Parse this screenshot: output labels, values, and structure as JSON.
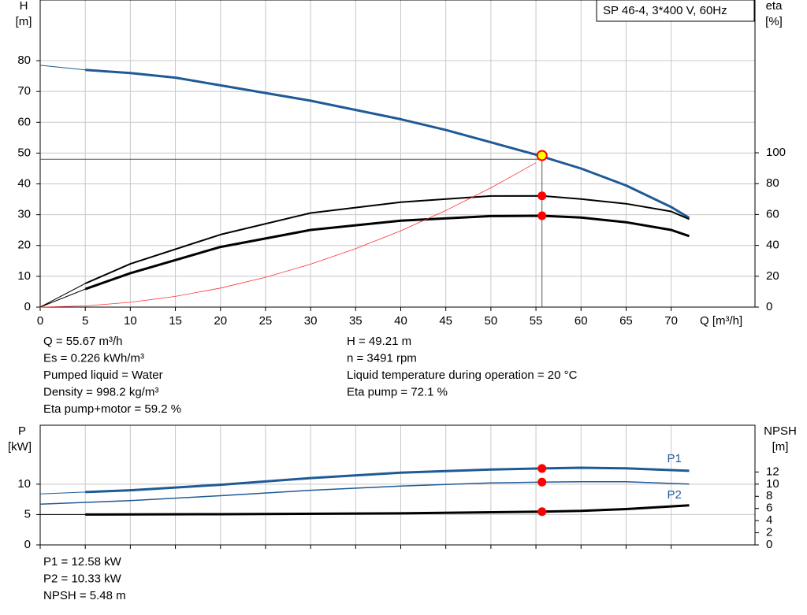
{
  "chart_data": [
    {
      "type": "line",
      "label": "SP 46-4, 3*400 V, 60Hz",
      "ylabel": [
        "H",
        "[m]"
      ],
      "y2label": [
        "eta",
        "[%]"
      ],
      "xlabel": "Q [m³/h]",
      "xlim": [
        0,
        79.3
      ],
      "xticks": [
        0,
        5,
        10,
        15,
        20,
        25,
        30,
        35,
        40,
        45,
        50,
        55,
        60,
        65,
        70
      ],
      "ylim": [
        0,
        99.7
      ],
      "yticks": [
        0,
        10,
        20,
        30,
        40,
        50,
        60,
        70,
        80
      ],
      "y2lim": [
        0,
        199
      ],
      "y2ticks": [
        0,
        20,
        40,
        60,
        80,
        100
      ],
      "grid": true,
      "series": [
        {
          "color": "#1f5a96",
          "width": 1,
          "x": [
            0,
            5
          ],
          "values": [
            78.5,
            77
          ]
        },
        {
          "color": "#1f5a96",
          "width": 3,
          "x": [
            5,
            10,
            15,
            20,
            25,
            30,
            35,
            40,
            45,
            50,
            55,
            60,
            65,
            70,
            72
          ],
          "values": [
            77,
            76,
            74.5,
            72,
            69.5,
            67,
            64,
            61,
            57.5,
            53.5,
            49.5,
            45,
            39.5,
            32.5,
            29
          ]
        },
        {
          "color": "#000000",
          "width": 1,
          "axis": "y2",
          "x": [
            0,
            5
          ],
          "values": [
            0,
            15.3
          ]
        },
        {
          "color": "#000000",
          "width": 2,
          "axis": "y2",
          "x": [
            5,
            10,
            20,
            30,
            40,
            50,
            55.67,
            60,
            65,
            70,
            72
          ],
          "values": [
            15.3,
            28,
            47,
            61,
            68,
            72,
            72.1,
            70,
            67,
            62,
            57
          ]
        },
        {
          "color": "#000000",
          "width": 1,
          "axis": "y2",
          "x": [
            0,
            5
          ],
          "values": [
            0,
            11.7
          ]
        },
        {
          "color": "#000000",
          "width": 3,
          "axis": "y2",
          "x": [
            5,
            10,
            20,
            30,
            40,
            50,
            55.67,
            60,
            65,
            70,
            72
          ],
          "values": [
            11.7,
            22,
            39,
            50,
            56,
            59,
            59.2,
            58,
            55,
            50,
            46
          ]
        },
        {
          "color": "#ff3030",
          "width": 0.8,
          "x": [
            0,
            5,
            10,
            15,
            20,
            25,
            30,
            35,
            40,
            45,
            50,
            55
          ],
          "values": [
            0,
            0.39,
            1.55,
            3.48,
            6.19,
            9.68,
            13.94,
            18.97,
            24.78,
            31.36,
            38.72,
            46.85
          ]
        }
      ],
      "guide": {
        "x": 55.67,
        "y": 48
      },
      "markers": [
        {
          "x": 55.67,
          "y": 49.21,
          "color": "#ffff00"
        },
        {
          "x": 55.67,
          "y": 72.1,
          "axis": "y2",
          "color": "#ff0000"
        },
        {
          "x": 55.67,
          "y": 59.2,
          "axis": "y2",
          "color": "#ff0000"
        }
      ],
      "info": {
        "left": [
          "Q = 55.67 m³/h",
          "Es = 0.226 kWh/m³",
          "Pumped liquid = Water",
          "Density = 998.2 kg/m³",
          "Eta pump+motor = 59.2 %"
        ],
        "right": [
          "H = 49.21 m",
          "n = 3491 rpm",
          "Liquid temperature during operation = 20 °C",
          "Eta pump = 72.1 %"
        ]
      }
    },
    {
      "type": "line",
      "ylabel": [
        "P",
        "[kW]"
      ],
      "y2label": [
        "NPSH",
        "[m]"
      ],
      "xlim": [
        0,
        79.3
      ],
      "xticks": [
        0,
        5,
        10,
        15,
        20,
        25,
        30,
        35,
        40,
        45,
        50,
        55,
        60,
        65,
        70
      ],
      "ylim": [
        0,
        19.7
      ],
      "yticks": [
        0,
        5,
        10
      ],
      "y2lim": [
        0,
        19.7
      ],
      "y2ticks": [
        0,
        2,
        4,
        6,
        8,
        10,
        12
      ],
      "grid": true,
      "series": [
        {
          "color": "#1f5a96",
          "width": 1,
          "x": [
            0,
            5
          ],
          "values": [
            8.4,
            8.7
          ]
        },
        {
          "name": "P1",
          "color": "#1f5a96",
          "width": 3,
          "x": [
            5,
            10,
            20,
            30,
            40,
            50,
            55.67,
            60,
            65,
            72
          ],
          "values": [
            8.7,
            9.0,
            9.9,
            11.0,
            11.9,
            12.4,
            12.58,
            12.7,
            12.6,
            12.2
          ]
        },
        {
          "name": "P2",
          "color": "#1f5a96",
          "width": 1.5,
          "x": [
            0,
            5,
            10,
            20,
            30,
            40,
            50,
            55.67,
            60,
            65,
            72
          ],
          "values": [
            6.7,
            7.0,
            7.3,
            8.1,
            9.0,
            9.7,
            10.2,
            10.33,
            10.4,
            10.4,
            10.0
          ]
        },
        {
          "color": "#000000",
          "width": 1,
          "axis": "y2",
          "x": [
            0,
            5
          ],
          "values": [
            5.0,
            5.0
          ]
        },
        {
          "color": "#000000",
          "width": 3,
          "axis": "y2",
          "x": [
            5,
            20,
            40,
            55.67,
            60,
            65,
            72
          ],
          "values": [
            5.0,
            5.05,
            5.2,
            5.48,
            5.6,
            5.9,
            6.5
          ]
        }
      ],
      "markers": [
        {
          "x": 55.67,
          "y": 12.58,
          "color": "#ff0000"
        },
        {
          "x": 55.67,
          "y": 10.33,
          "color": "#ff0000"
        },
        {
          "x": 55.67,
          "y": 5.48,
          "axis": "y2",
          "color": "#ff0000"
        }
      ],
      "info": {
        "left": [
          "P1 = 12.58 kW",
          "P2 = 10.33 kW",
          "NPSH = 5.48 m"
        ]
      }
    }
  ]
}
